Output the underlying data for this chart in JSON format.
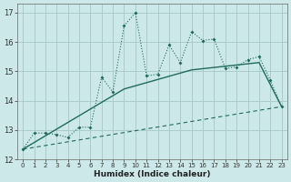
{
  "title": "",
  "xlabel": "Humidex (Indice chaleur)",
  "xlim": [
    -0.5,
    23.5
  ],
  "ylim": [
    12,
    17.3
  ],
  "yticks": [
    12,
    13,
    14,
    15,
    16,
    17
  ],
  "xticks": [
    0,
    1,
    2,
    3,
    4,
    5,
    6,
    7,
    8,
    9,
    10,
    11,
    12,
    13,
    14,
    15,
    16,
    17,
    18,
    19,
    20,
    21,
    22,
    23
  ],
  "bg_color": "#cde8e8",
  "grid_color": "#aacccc",
  "line_color": "#1e6b5e",
  "line1_x": [
    0,
    1,
    2,
    3,
    4,
    5,
    6,
    7,
    8,
    9,
    10,
    11,
    12,
    13,
    14,
    15,
    16,
    17,
    18,
    19,
    20,
    21,
    22,
    23
  ],
  "line1_y": [
    12.35,
    12.9,
    12.9,
    12.85,
    12.75,
    13.1,
    13.1,
    14.8,
    14.3,
    16.55,
    17.0,
    14.85,
    14.9,
    15.9,
    15.3,
    16.35,
    16.05,
    16.1,
    15.1,
    15.15,
    15.4,
    15.5,
    14.7,
    13.8
  ],
  "line2_x": [
    0,
    9,
    15,
    21,
    23
  ],
  "line2_y": [
    12.35,
    14.4,
    15.05,
    15.3,
    13.8
  ],
  "line3_x": [
    0,
    23
  ],
  "line3_y": [
    12.35,
    13.8
  ]
}
